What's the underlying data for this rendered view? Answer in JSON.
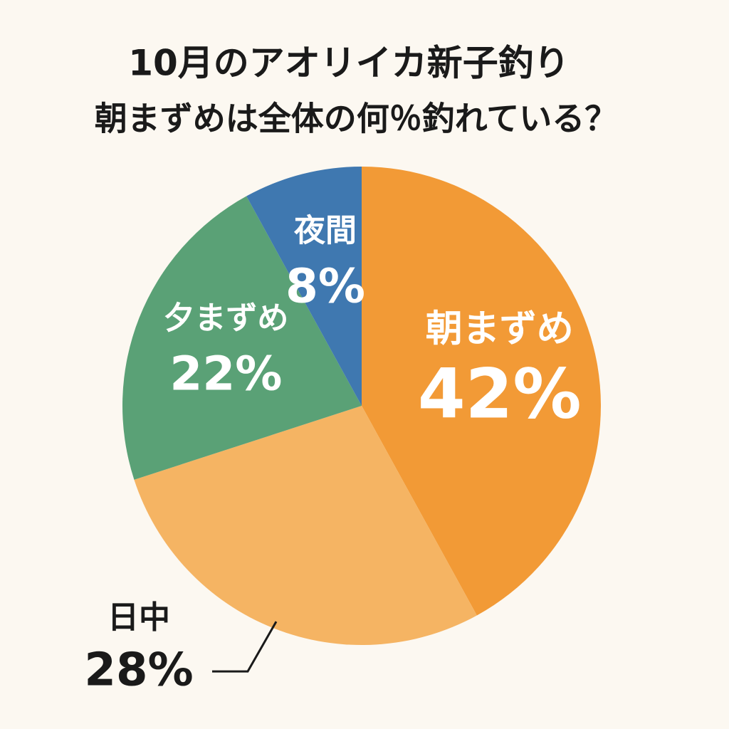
{
  "chart_data": {
    "type": "pie",
    "title": "10月のアオリイカ新子釣り",
    "subtitle": "朝まずめは全体の何％釣れている？",
    "categories": [
      "朝まずめ",
      "日中",
      "夕まずめ",
      "夜間"
    ],
    "values": [
      42,
      28,
      22,
      8
    ],
    "value_labels": [
      "42%",
      "28%",
      "22%",
      "8%"
    ],
    "colors": [
      "#f29a36",
      "#f5b463",
      "#5aa176",
      "#3f78b0"
    ]
  }
}
